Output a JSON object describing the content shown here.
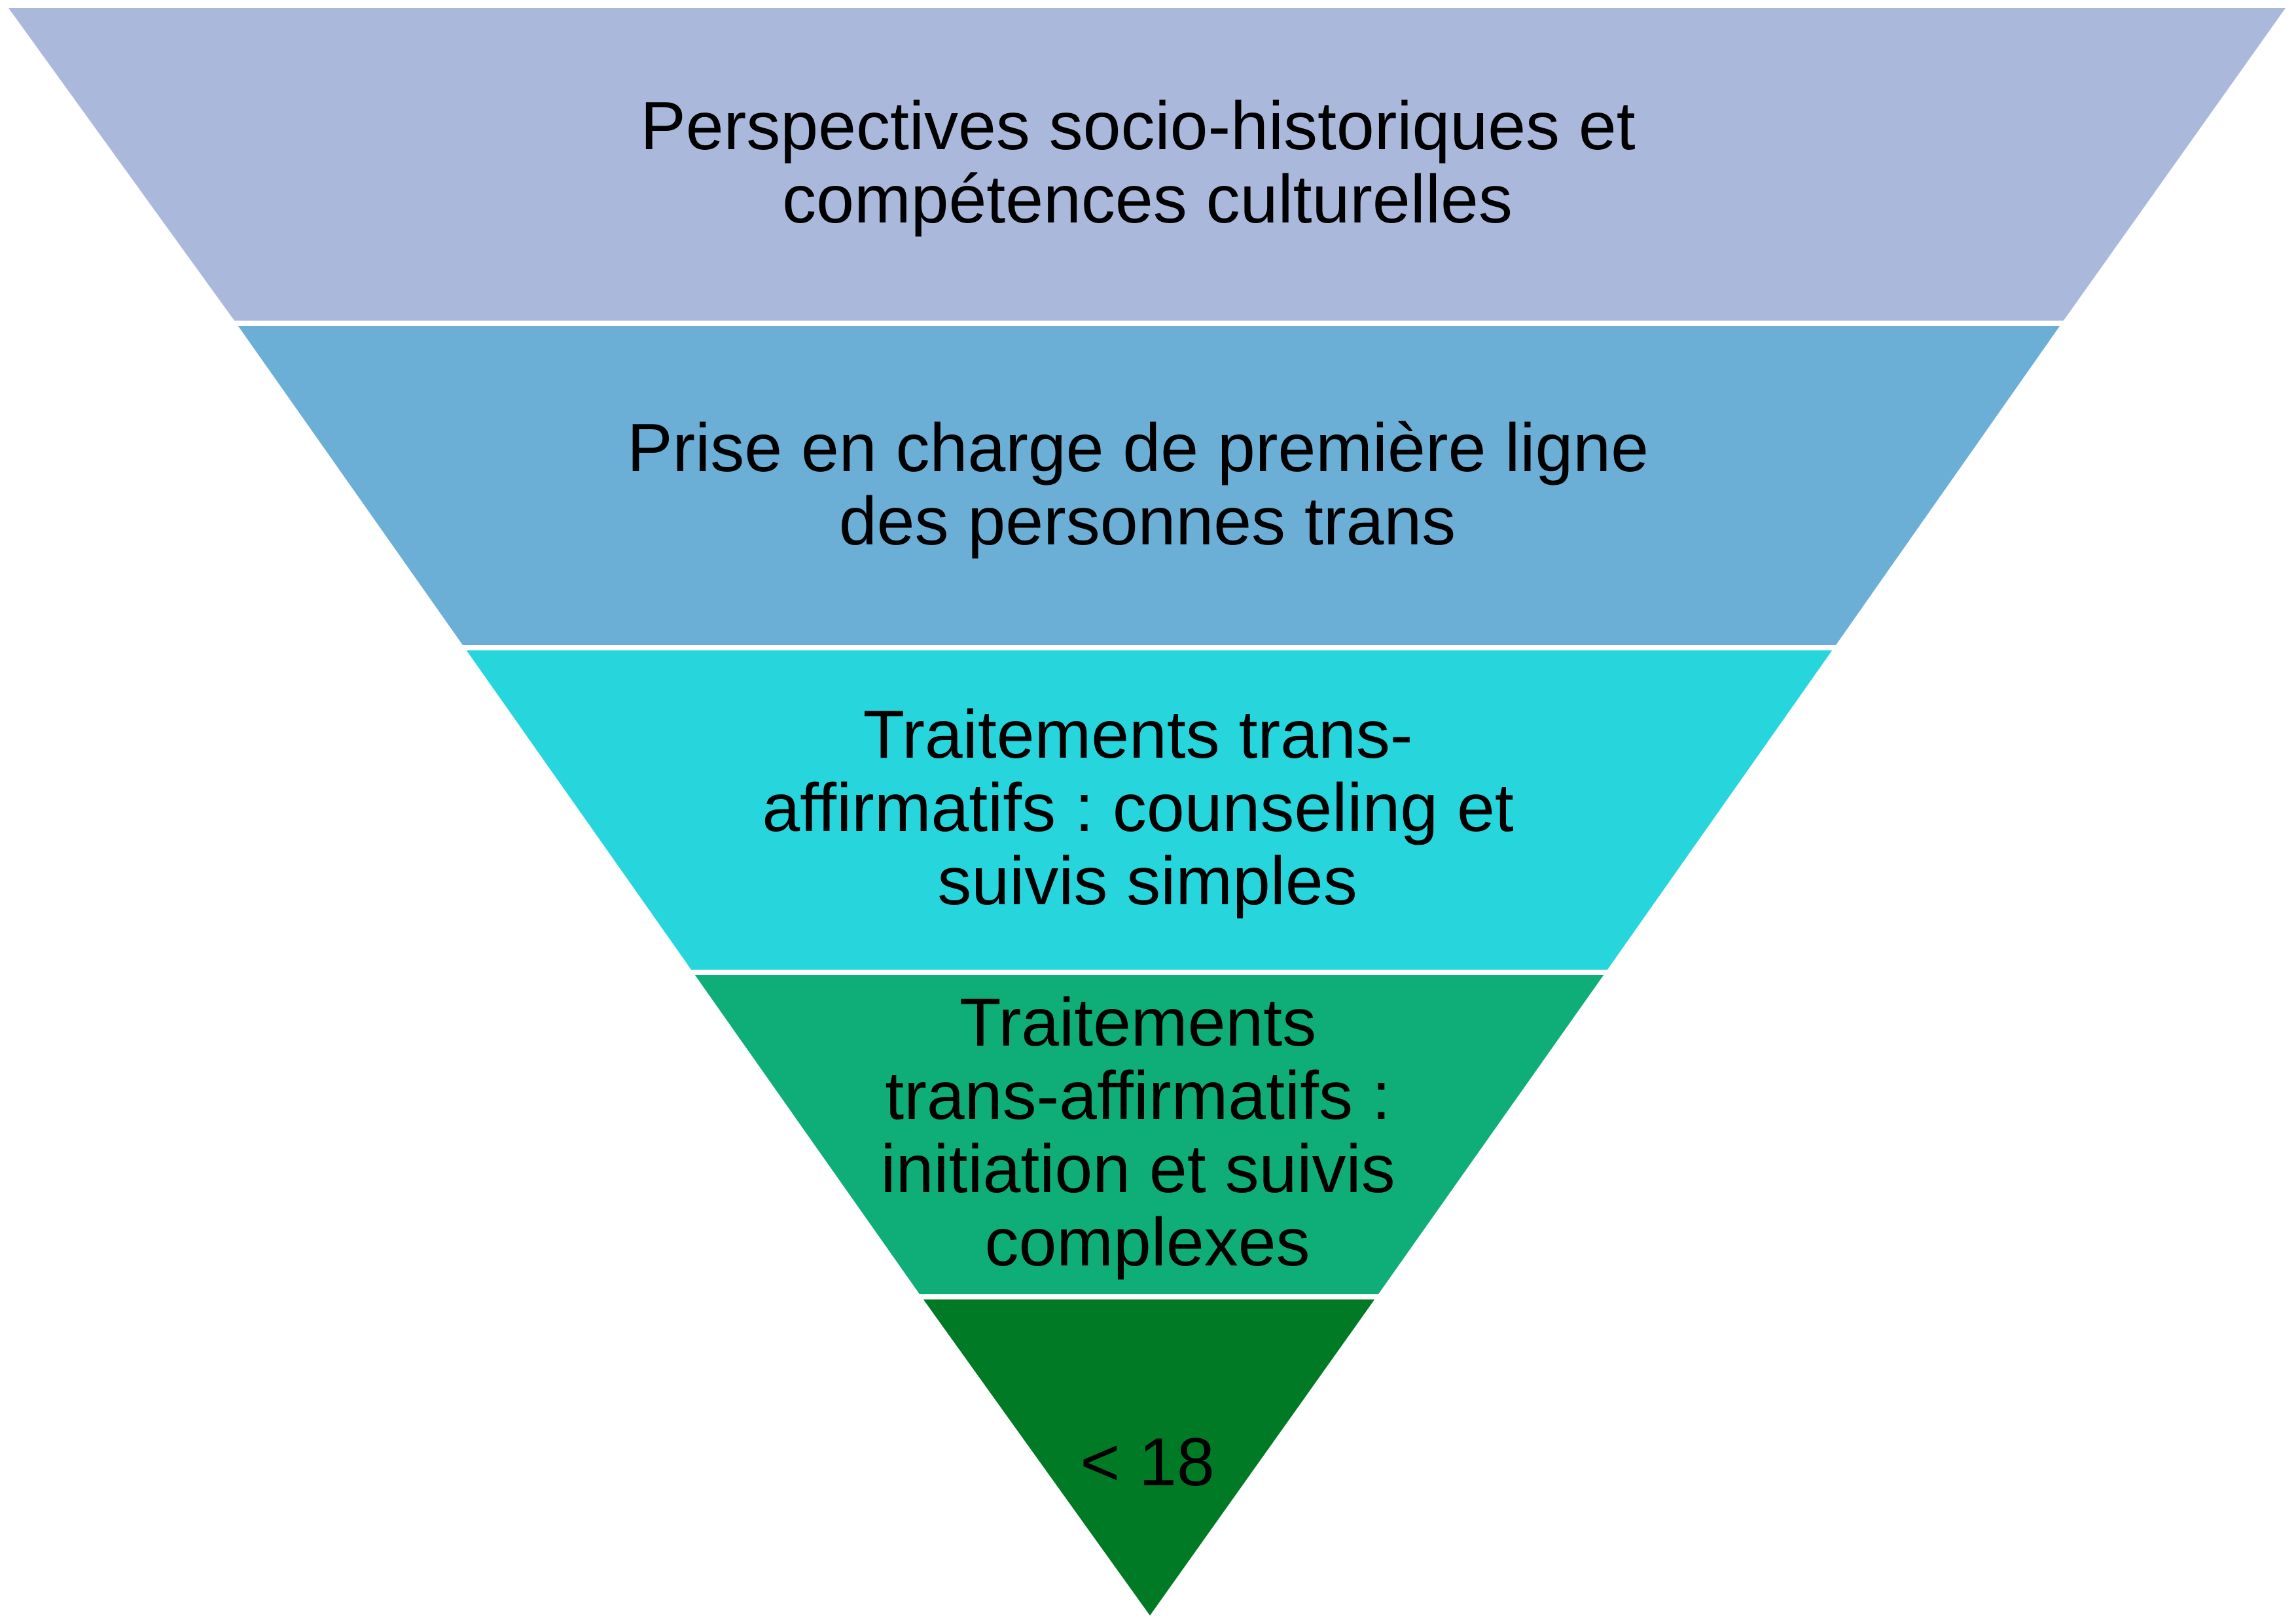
{
  "pyramid": {
    "levels": [
      {
        "lines": [
          "Perspectives socio-historiques et",
          "compétences culturelles"
        ],
        "color": "#aab8dc"
      },
      {
        "lines": [
          "Prise en charge de première ligne",
          "des personnes trans"
        ],
        "color": "#6baed6"
      },
      {
        "lines": [
          "Traitements trans-",
          "affirmatifs : counseling et",
          "suivis simples"
        ],
        "color": "#26d6dc"
      },
      {
        "lines": [
          "Traitements",
          "trans-affirmatifs :",
          "initiation et suivis",
          "complexes"
        ],
        "color": "#0fae78"
      },
      {
        "lines": [
          "< 18"
        ],
        "color": "#007a25"
      }
    ]
  }
}
